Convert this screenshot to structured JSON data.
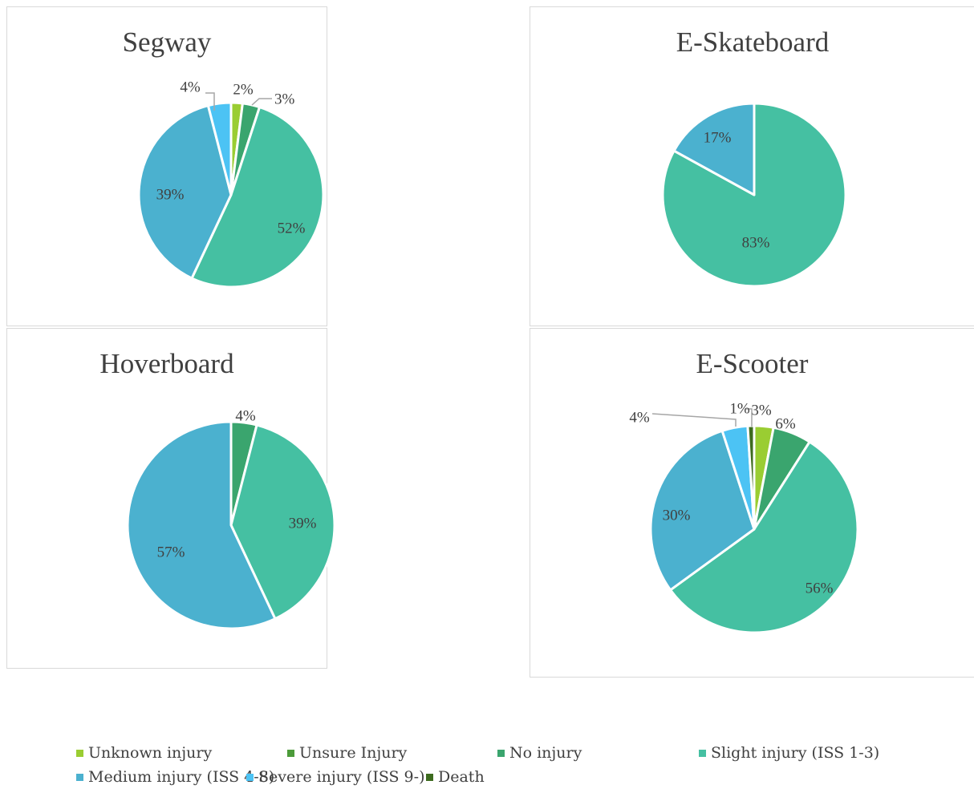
{
  "chart_data": [
    {
      "type": "pie",
      "title": "Segway",
      "slices": [
        {
          "category": "Unknown injury",
          "value": 2,
          "label": "2%"
        },
        {
          "category": "No injury",
          "value": 3,
          "label": "3%"
        },
        {
          "category": "Slight injury (ISS 1-3)",
          "value": 52,
          "label": "52%"
        },
        {
          "category": "Medium injury (ISS 4-8)",
          "value": 39,
          "label": "39%"
        },
        {
          "category": "Severe injury (ISS 9-)",
          "value": 4,
          "label": "4%"
        }
      ]
    },
    {
      "type": "pie",
      "title": "E-Skateboard",
      "slices": [
        {
          "category": "Slight injury (ISS 1-3)",
          "value": 83,
          "label": "83%"
        },
        {
          "category": "Medium injury (ISS 4-8)",
          "value": 17,
          "label": "17%"
        }
      ]
    },
    {
      "type": "pie",
      "title": "Hoverboard",
      "slices": [
        {
          "category": "No injury",
          "value": 4,
          "label": "4%"
        },
        {
          "category": "Slight injury (ISS 1-3)",
          "value": 39,
          "label": "39%"
        },
        {
          "category": "Medium injury (ISS 4-8)",
          "value": 57,
          "label": "57%"
        }
      ]
    },
    {
      "type": "pie",
      "title": "E-Scooter",
      "slices": [
        {
          "category": "Unknown injury",
          "value": 3,
          "label": "3%"
        },
        {
          "category": "No injury",
          "value": 6,
          "label": "6%"
        },
        {
          "category": "Slight injury (ISS 1-3)",
          "value": 56,
          "label": "56%"
        },
        {
          "category": "Medium injury (ISS 4-8)",
          "value": 30,
          "label": "30%"
        },
        {
          "category": "Severe injury (ISS 9-)",
          "value": 4,
          "label": "4%"
        },
        {
          "category": "Death",
          "value": 1,
          "label": "1%"
        }
      ]
    }
  ],
  "legend": [
    {
      "label": "Unknown injury",
      "color": "#9acd32"
    },
    {
      "label": "Unsure Injury",
      "color": "#4c9b3a"
    },
    {
      "label": "No injury",
      "color": "#3aa56e"
    },
    {
      "label": "Slight injury (ISS 1-3)",
      "color": "#45c0a2"
    },
    {
      "label": "Medium injury (ISS 4-8)",
      "color": "#4bb1cf"
    },
    {
      "label": "Severe injury (ISS 9-)",
      "color": "#4cc3f4"
    },
    {
      "label": "Death",
      "color": "#3d6b1f"
    }
  ]
}
